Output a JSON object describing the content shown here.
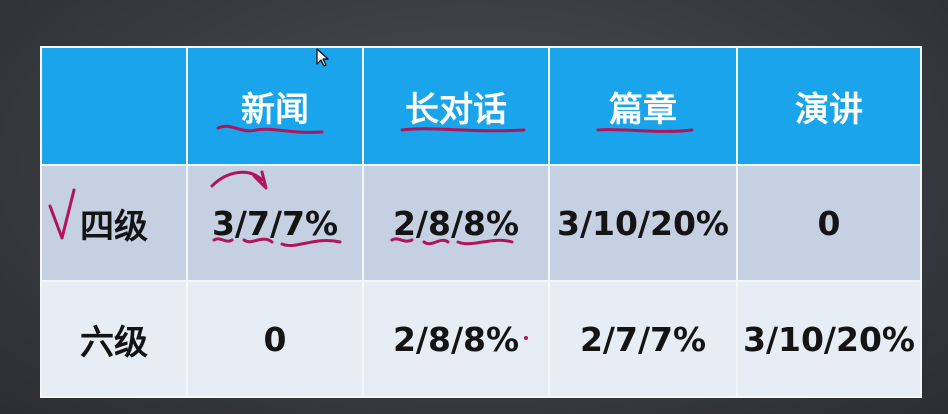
{
  "table": {
    "headers": [
      "",
      "新闻",
      "长对话",
      "篇章",
      "演讲"
    ],
    "rows": [
      {
        "label": "四级",
        "cells": [
          "3/7/7%",
          "2/8/8%",
          "3/10/20%",
          "0"
        ]
      },
      {
        "label": "六级",
        "cells": [
          "0",
          "2/8/8%",
          "2/7/7%",
          "3/10/20%"
        ]
      }
    ]
  },
  "colors": {
    "header_bg": "#1aa4ec",
    "header_text": "#ffffff",
    "row1_bg": "#c5d1e3",
    "row2_bg": "#e7edf5",
    "annotation_ink": "#b0145a"
  }
}
